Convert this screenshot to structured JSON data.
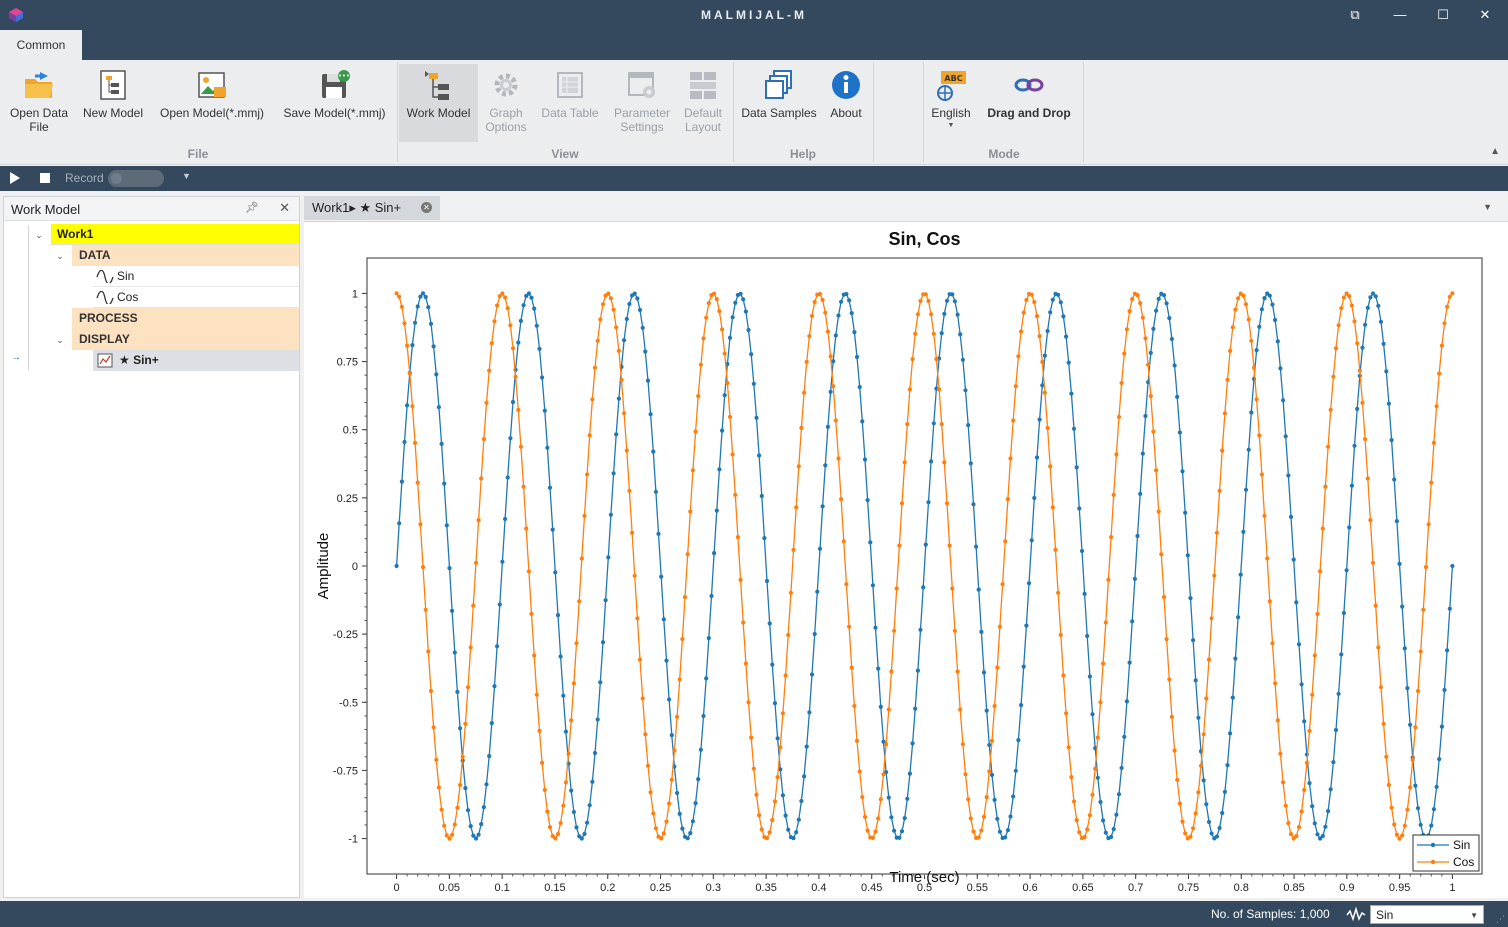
{
  "window": {
    "title": "MALMIJAL-M"
  },
  "tabs": [
    {
      "label": "Common"
    }
  ],
  "ribbon": {
    "file": {
      "group_label": "File",
      "open_data_file": "Open Data File",
      "new_model": "New Model",
      "open_model": "Open Model(*.mmj)",
      "save_model": "Save Model(*.mmj)"
    },
    "view": {
      "group_label": "View",
      "work_model": "Work Model",
      "graph_options": "Graph Options",
      "data_table": "Data Table",
      "parameter_settings": "Parameter Settings",
      "default_layout": "Default Layout"
    },
    "help": {
      "group_label": "Help",
      "data_samples": "Data Samples",
      "about": "About"
    },
    "mode": {
      "group_label": "Mode",
      "language": "English",
      "drag_and_drop": "Drag and Drop",
      "language_badge": "ABC"
    }
  },
  "toolbar": {
    "record_label": "Record"
  },
  "work_model_panel": {
    "title": "Work Model",
    "tree": {
      "root": "Work1",
      "data_label": "DATA",
      "data_items": [
        "Sin",
        "Cos"
      ],
      "process_label": "PROCESS",
      "display_label": "DISPLAY",
      "display_items": [
        "★ Sin+"
      ]
    }
  },
  "document_tab": {
    "label": "Work1▸ ★ Sin+"
  },
  "status": {
    "samples": "No. of Samples: 1,000",
    "channel_select": "Sin"
  },
  "colors": {
    "sin": "#1f77b4",
    "cos": "#ff7f0e",
    "highlight_root": "#ffff00",
    "highlight_group": "#fde2c2"
  },
  "chart_data": {
    "type": "line",
    "title": "Sin, Cos",
    "xlabel": "Time (sec)",
    "ylabel": "Amplitude",
    "xlim": [
      0,
      1
    ],
    "ylim": [
      -1,
      1
    ],
    "x_ticks": [
      0,
      0.05,
      0.1,
      0.15,
      0.2,
      0.25,
      0.3,
      0.35,
      0.4,
      0.45,
      0.5,
      0.55,
      0.6,
      0.65,
      0.7,
      0.75,
      0.8,
      0.85,
      0.9,
      0.95,
      1
    ],
    "x_tick_labels": [
      "0",
      "0.05",
      "0.1",
      "0.15",
      "0.2",
      "0.25",
      "0.3",
      "0.35",
      "0.4",
      "0.45",
      "0.5",
      "0.55",
      "0.6",
      "0.65",
      "0.7",
      "0.75",
      "0.8",
      "0.85",
      "0.9",
      "0.95",
      "1"
    ],
    "y_ticks": [
      1,
      0.75,
      0.5,
      0.25,
      0,
      -0.25,
      -0.5,
      -0.75,
      -1
    ],
    "y_tick_labels": [
      "1",
      "0.75",
      "0.5",
      "0.25",
      "0",
      "-0.25",
      "-0.5",
      "-0.75",
      "-1"
    ],
    "grid": false,
    "legend_position": "bottom-right",
    "series": [
      {
        "name": "Sin",
        "function": "sin",
        "frequency_hz": 10,
        "amplitude": 1,
        "x_start": 0,
        "x_end": 1,
        "point_count": 400
      },
      {
        "name": "Cos",
        "function": "cos",
        "frequency_hz": 10,
        "amplitude": 1,
        "x_start": 0,
        "x_end": 1,
        "point_count": 400
      }
    ]
  }
}
